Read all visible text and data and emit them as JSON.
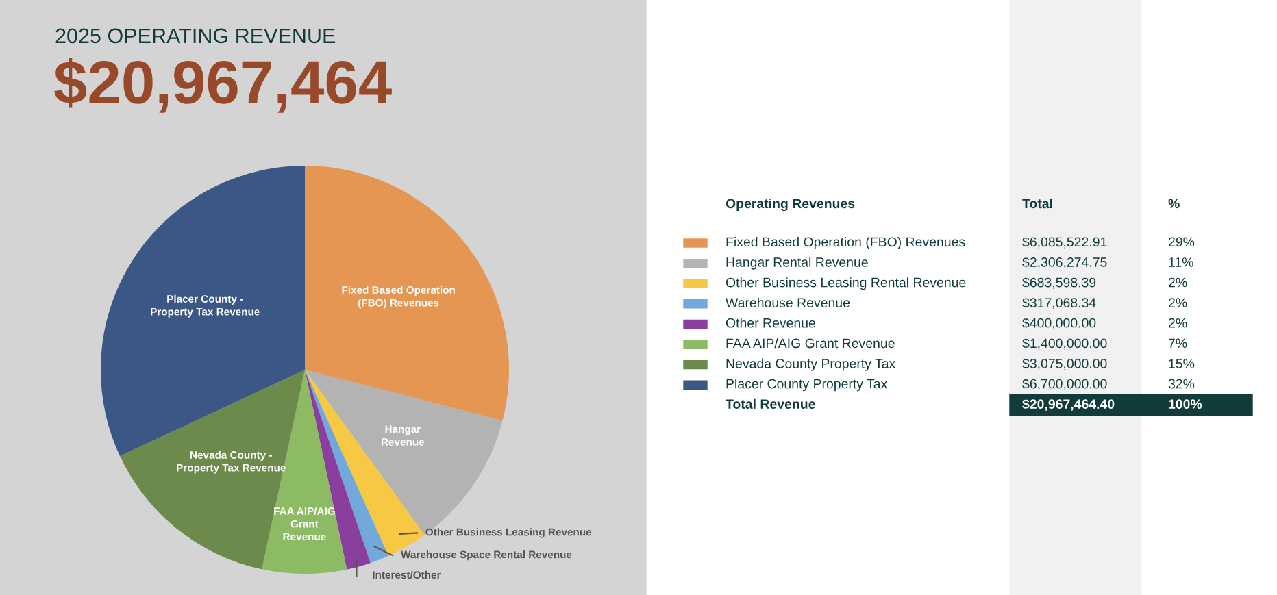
{
  "chart_data": {
    "type": "pie",
    "title": "2025 OPERATING REVENUE",
    "subtitle": "$20,967,464",
    "categories": [
      "Fixed Based Operation (FBO) Revenues",
      "Hangar Rental Revenue",
      "Other Business Leasing Rental Revenue",
      "Warehouse Revenue",
      "Other Revenue",
      "FAA AIP/AIG Grant Revenue",
      "Nevada County Property Tax",
      "Placer County Property Tax"
    ],
    "values": [
      6085522.91,
      2306274.75,
      683598.39,
      317068.34,
      400000.0,
      1400000.0,
      3075000.0,
      6700000.0
    ],
    "colors": [
      "#e69653",
      "#b3b3b3",
      "#f6c843",
      "#72a9dc",
      "#8a3f9e",
      "#8dbb64",
      "#6b8a4c",
      "#3b5785"
    ],
    "value_labels": [
      "$6,085,522.91",
      "$2,306,274.75",
      "$683,598.39",
      "$317,068.34",
      "$400,000.00",
      "$1,400,000.00",
      "$3,075,000.00",
      "$6,700,000.00"
    ],
    "legend": "right",
    "annotations": [
      "Fixed Based Operation\n(FBO) Revenues",
      "Hangar\nRevenue",
      "Other Business Leasing Revenue",
      "Warehouse Space Rental Revenue",
      "Interest/Other",
      "FAA AIP/AIG\nGrant\nRevenue",
      "Nevada County -\nProperty Tax Revenue",
      "Placer County -\nProperty Tax Revenue",
      "Operating Revenues",
      "Total",
      "%",
      "29%",
      "11%",
      "2%",
      "2%",
      "2%",
      "7%",
      "15%",
      "32%",
      "Total Revenue",
      "$20,967,464.40",
      "100%"
    ]
  }
}
